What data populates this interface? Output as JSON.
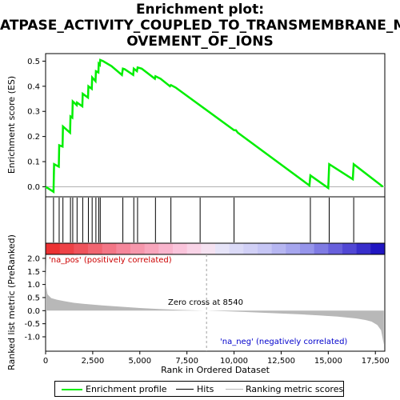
{
  "title": {
    "line1": "Enrichment plot:",
    "line2": "ATPASE_ACTIVITY_COUPLED_TO_TRANSMEMBRANE_M",
    "line3": "OVEMENT_OF_IONS"
  },
  "colors": {
    "es_line": "#00ee00",
    "hits": "#000000",
    "metric_fill": "#b8b8b8",
    "zero_line": "#a0a0a0",
    "pos_label": "#cc0000",
    "neg_label": "#0000cc"
  },
  "chart_data": [
    {
      "type": "line",
      "name": "enrichment-profile",
      "ylabel": "Enrichment score (ES)",
      "xlim": [
        0,
        18000
      ],
      "ylim": [
        -0.04,
        0.53
      ],
      "yticks": [
        "0.0",
        "0.1",
        "0.2",
        "0.3",
        "0.4",
        "0.5"
      ],
      "ytick_values": [
        0.0,
        0.1,
        0.2,
        0.3,
        0.4,
        0.5
      ],
      "x": [
        0,
        420,
        450,
        700,
        720,
        900,
        920,
        1300,
        1320,
        1420,
        1440,
        1650,
        1670,
        1950,
        1970,
        2250,
        2270,
        2450,
        2470,
        2650,
        2670,
        2800,
        2820,
        2880,
        2900,
        3050,
        3500,
        4050,
        4100,
        4200,
        4650,
        4680,
        4850,
        4880,
        5100,
        5800,
        5830,
        6100,
        6600,
        6650,
        6900,
        10000,
        10100,
        10200,
        14000,
        14050,
        15000,
        15050,
        16300,
        16350,
        17900
      ],
      "y": [
        0.0,
        -0.02,
        0.09,
        0.08,
        0.165,
        0.16,
        0.24,
        0.215,
        0.28,
        0.275,
        0.34,
        0.325,
        0.335,
        0.32,
        0.37,
        0.355,
        0.4,
        0.39,
        0.435,
        0.42,
        0.46,
        0.455,
        0.49,
        0.485,
        0.505,
        0.5,
        0.48,
        0.445,
        0.47,
        0.468,
        0.445,
        0.47,
        0.46,
        0.475,
        0.47,
        0.43,
        0.44,
        0.43,
        0.4,
        0.405,
        0.395,
        0.225,
        0.225,
        0.215,
        0.005,
        0.045,
        -0.005,
        0.09,
        0.03,
        0.09,
        0.0
      ]
    },
    {
      "type": "bar",
      "name": "hits",
      "x": [
        420,
        720,
        920,
        1320,
        1440,
        1670,
        1970,
        2270,
        2470,
        2670,
        2820,
        2900,
        4100,
        4680,
        4880,
        5830,
        6650,
        8200,
        10000,
        14050,
        15050,
        16350
      ]
    },
    {
      "type": "area",
      "name": "ranked-metric",
      "xlabel": "Rank in Ordered Dataset",
      "ylabel": "Ranked list metric (PreRanked)",
      "xlim": [
        0,
        18000
      ],
      "ylim": [
        -1.55,
        2.15
      ],
      "xticks": [
        "0",
        "2,500",
        "5,000",
        "7,500",
        "10,000",
        "12,500",
        "15,000",
        "17,500"
      ],
      "xtick_values": [
        0,
        2500,
        5000,
        7500,
        10000,
        12500,
        15000,
        17500
      ],
      "yticks": [
        "-1.0",
        "-0.5",
        "0.0",
        "0.5",
        "1.0",
        "1.5",
        "2.0"
      ],
      "ytick_values": [
        -1.0,
        -0.5,
        0.0,
        0.5,
        1.0,
        1.5,
        2.0
      ],
      "x": [
        0,
        30,
        100,
        300,
        600,
        1000,
        1500,
        2000,
        3000,
        4000,
        5000,
        6000,
        7000,
        8000,
        8540,
        9500,
        10500,
        11500,
        12500,
        13500,
        14500,
        15500,
        16500,
        17000,
        17300,
        17600,
        17800,
        17950
      ],
      "y": [
        2.0,
        0.95,
        0.62,
        0.48,
        0.42,
        0.36,
        0.3,
        0.26,
        0.2,
        0.15,
        0.1,
        0.06,
        0.03,
        0.01,
        0.0,
        -0.02,
        -0.05,
        -0.08,
        -0.11,
        -0.14,
        -0.18,
        -0.23,
        -0.3,
        -0.36,
        -0.42,
        -0.55,
        -0.75,
        -1.3
      ],
      "zero_cross": 8540
    }
  ],
  "annotations": {
    "pos": "'na_pos' (positively correlated)",
    "neg": "'na_neg' (negatively correlated)",
    "zero": "Zero cross at 8540"
  },
  "legend": {
    "es": "Enrichment profile",
    "hits": "Hits",
    "metric": "Ranking metric scores"
  }
}
